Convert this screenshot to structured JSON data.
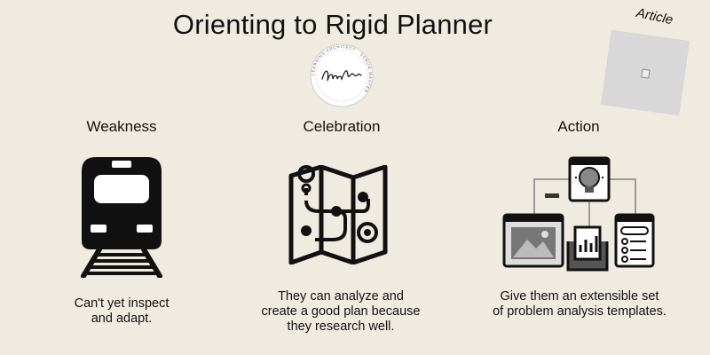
{
  "title": "Orienting to Rigid Planner",
  "logo": {
    "icon": "signature-seal",
    "signature": "Marian Hartman",
    "ring_text": "LEARNING ARCHITECT · SCRUM MASTER"
  },
  "article": {
    "label": "Article",
    "icon": "document-thumbnail"
  },
  "columns": [
    {
      "heading": "Weakness",
      "icon": "train-icon",
      "text_lines": [
        "Can't yet inspect",
        "and adapt."
      ]
    },
    {
      "heading": "Celebration",
      "icon": "map-route-icon",
      "text_lines": [
        "They can analyze and",
        "create a good plan because",
        "they research well."
      ]
    },
    {
      "heading": "Action",
      "icon": "idea-templates-icon",
      "text_lines": [
        "Give them an extensible set",
        "of problem analysis templates."
      ]
    }
  ]
}
